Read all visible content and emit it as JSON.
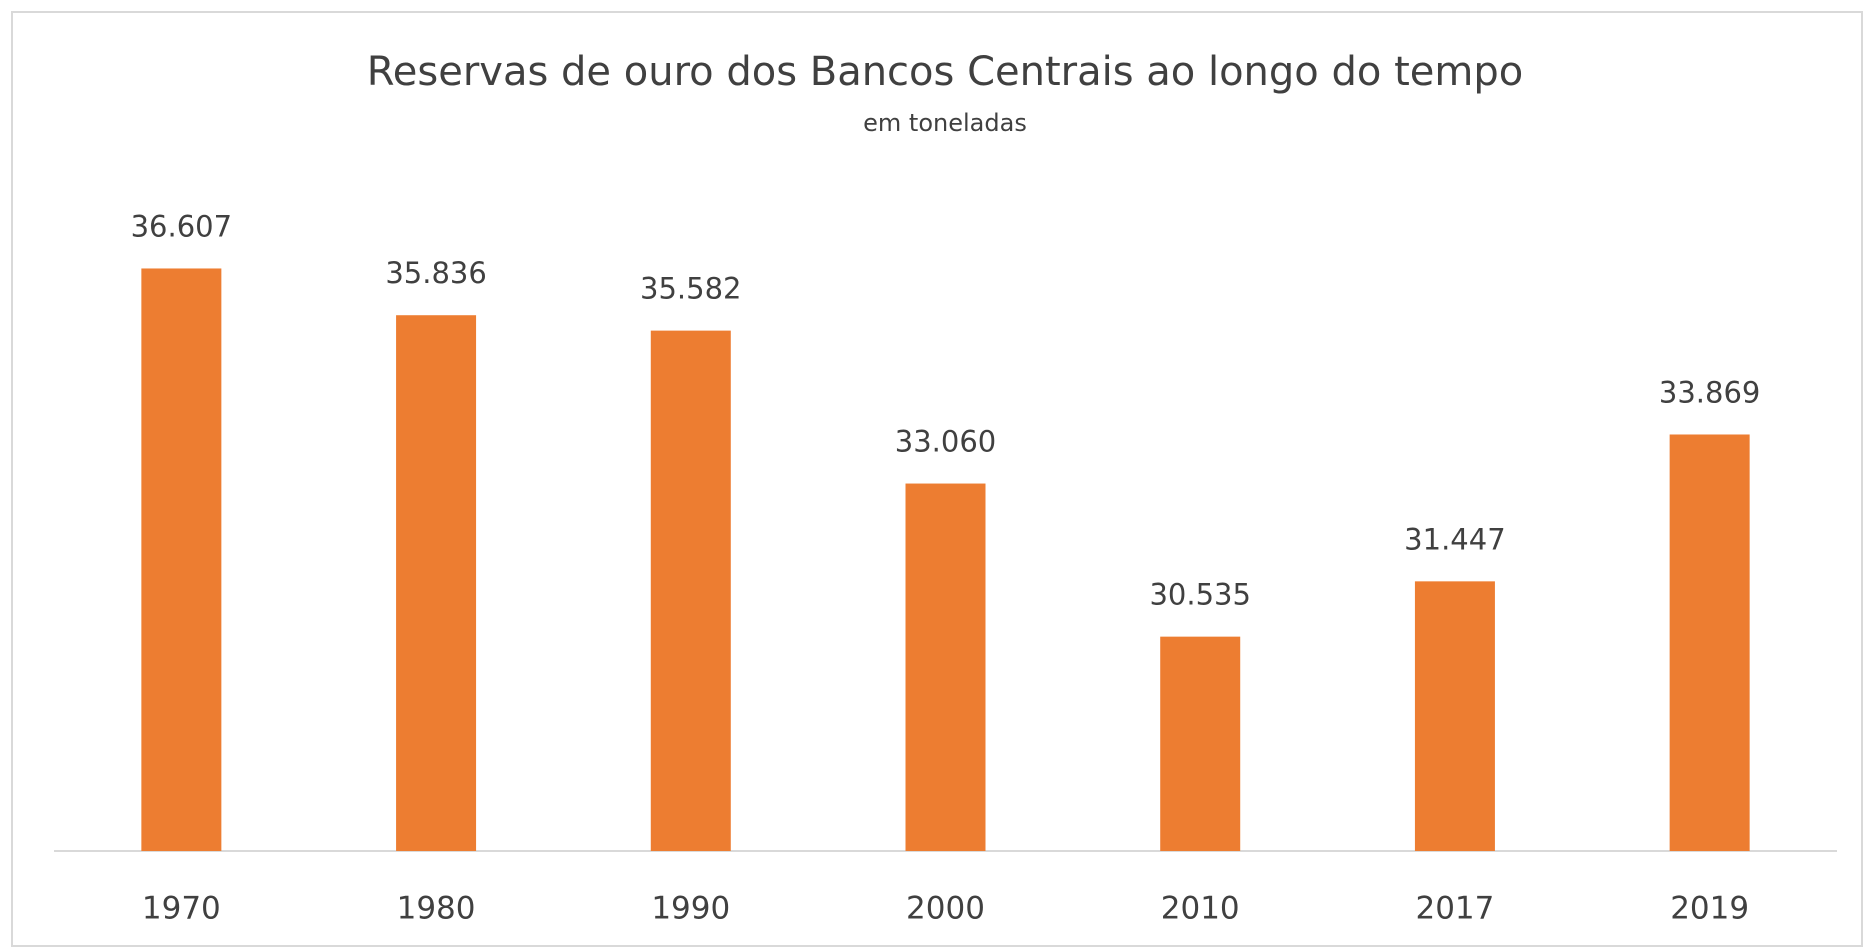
{
  "chart_data": {
    "type": "bar",
    "title": "Reservas de ouro dos Bancos Centrais ao longo do tempo",
    "subtitle": "em toneladas",
    "categories": [
      "1970",
      "1980",
      "1990",
      "2000",
      "2010",
      "2017",
      "2019"
    ],
    "values": [
      36607,
      35836,
      35582,
      33060,
      30535,
      31447,
      33869
    ],
    "value_labels": [
      "36.607",
      "35.836",
      "35.582",
      "33.060",
      "30.535",
      "31.447",
      "33.869"
    ],
    "color": "#ed7d31",
    "ylim": [
      27000,
      38000
    ]
  }
}
